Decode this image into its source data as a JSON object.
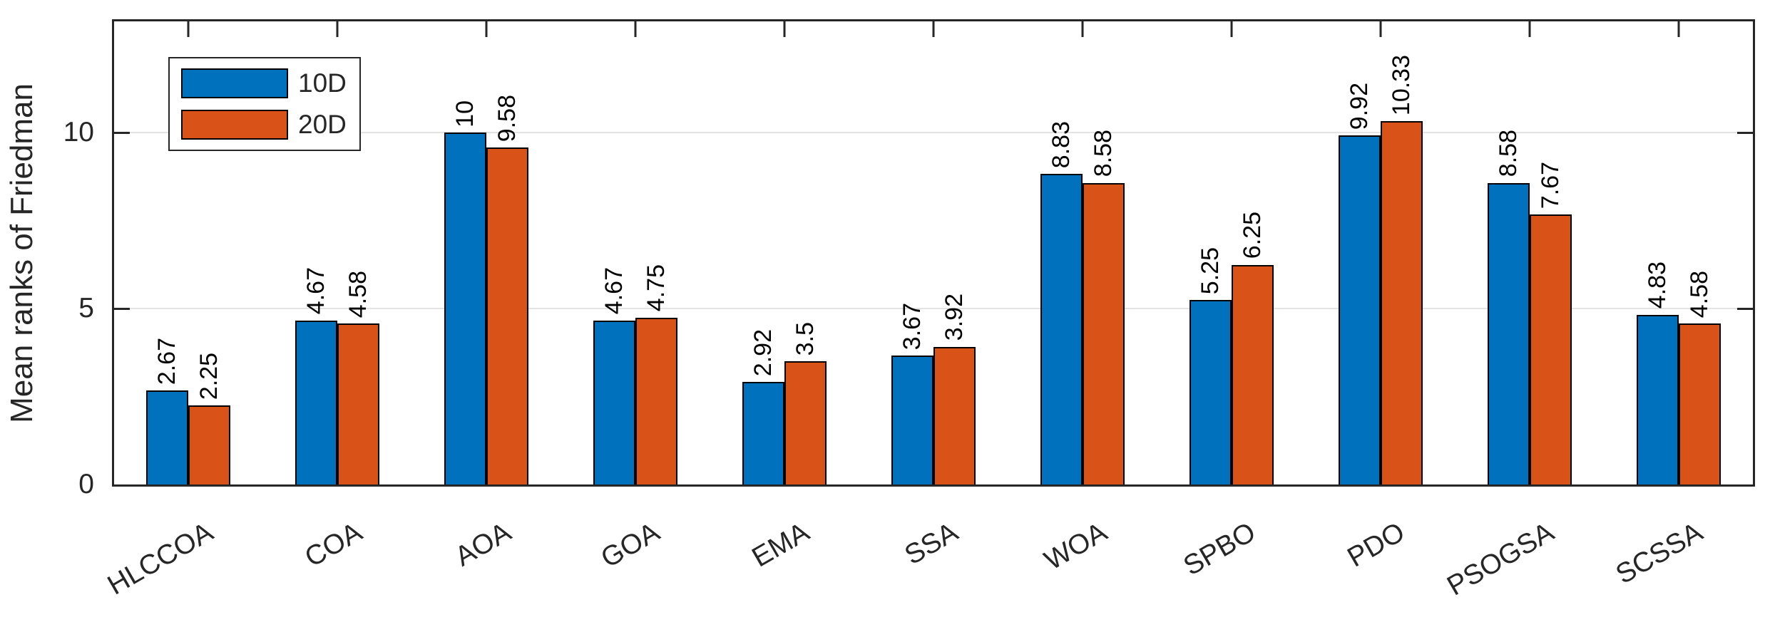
{
  "figure": {
    "background": "#ffffff",
    "frame_color": "#262626",
    "grid_color": "#e3e3e3",
    "bar_edge_color": "#000000"
  },
  "chart_data": {
    "type": "bar",
    "title": "",
    "xlabel": "",
    "ylabel": "Mean ranks of Friedman",
    "categories": [
      "HLCCOA",
      "COA",
      "AOA",
      "GOA",
      "EMA",
      "SSA",
      "WOA",
      "SPBO",
      "PDO",
      "PSOGSA",
      "SCSSA"
    ],
    "series": [
      {
        "name": "10D",
        "color": "#0072BD",
        "values": [
          2.67,
          4.67,
          10,
          4.67,
          2.92,
          3.67,
          8.83,
          5.25,
          9.92,
          8.58,
          4.83
        ],
        "labels": [
          "2.67",
          "4.67",
          "10",
          "4.67",
          "2.92",
          "3.67",
          "8.83",
          "5.25",
          "9.92",
          "8.58",
          "4.83"
        ]
      },
      {
        "name": "20D",
        "color": "#D95319",
        "values": [
          2.25,
          4.58,
          9.58,
          4.75,
          3.5,
          3.92,
          8.58,
          6.25,
          10.33,
          7.67,
          4.58
        ],
        "labels": [
          "2.25",
          "4.58",
          "9.58",
          "4.75",
          "3.5",
          "3.92",
          "8.58",
          "6.25",
          "10.33",
          "7.67",
          "4.58"
        ]
      }
    ],
    "yticks": [
      0,
      5,
      10
    ],
    "ytick_labels": [
      "0",
      "5",
      "10"
    ],
    "grid_yticks": [
      5,
      10
    ],
    "ylim": [
      0,
      13.17
    ],
    "grid": "horizontal",
    "legend_position": "upper-left",
    "legend_items": [
      "10D",
      "20D"
    ],
    "bar_label_rotation_deg": 90,
    "xtick_rotation_deg": -30
  }
}
